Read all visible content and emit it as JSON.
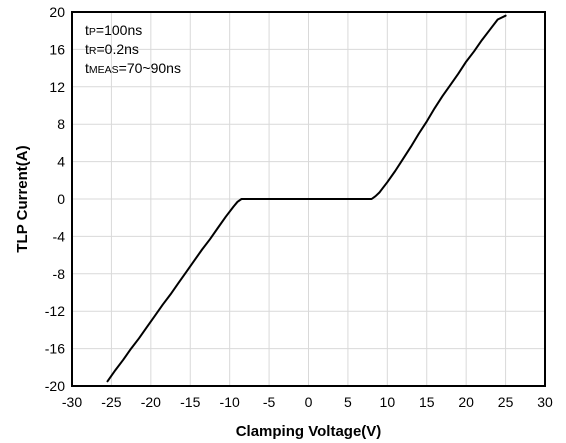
{
  "chart_data": {
    "type": "line",
    "title": "",
    "xlabel": "Clamping Voltage(V)",
    "ylabel": "TLP Current(A)",
    "xlim": [
      -30,
      30
    ],
    "ylim": [
      -20,
      20
    ],
    "xticks": [
      -30,
      -25,
      -20,
      -15,
      -10,
      -5,
      0,
      5,
      10,
      15,
      20,
      25,
      30
    ],
    "yticks": [
      -20,
      -16,
      -12,
      -8,
      -4,
      0,
      4,
      8,
      12,
      16,
      20
    ],
    "grid": true,
    "legend": "none",
    "annotations": [
      {
        "prefix": "t",
        "sub": "P",
        "suffix": "=100ns"
      },
      {
        "prefix": "t",
        "sub": "R",
        "suffix": "=0.2ns"
      },
      {
        "prefix": "t",
        "sub": "MEAS",
        "suffix": "=70~90ns"
      }
    ],
    "series": [
      {
        "color": "#000000",
        "x": [
          -25.5,
          -24.5,
          -23.5,
          -22.5,
          -21.5,
          -20.5,
          -19.5,
          -18.5,
          -17.5,
          -16.5,
          -15.5,
          -14.5,
          -13.5,
          -12.5,
          -11.5,
          -10.5,
          -9.5,
          -9.0,
          -8.5,
          -8.0,
          -6.0,
          -4.0,
          -2.0,
          0.0,
          2.0,
          4.0,
          6.0,
          7.5,
          8.0,
          8.5,
          9.0,
          10.0,
          11.0,
          12.0,
          13.0,
          14.0,
          15.0,
          16.0,
          17.0,
          18.0,
          19.0,
          20.0,
          21.0,
          22.0,
          23.0,
          24.0,
          25.0
        ],
        "y": [
          -19.5,
          -18.3,
          -17.2,
          -16.0,
          -14.9,
          -13.7,
          -12.5,
          -11.3,
          -10.2,
          -9.0,
          -7.8,
          -6.6,
          -5.4,
          -4.3,
          -3.1,
          -1.9,
          -0.8,
          -0.3,
          0.0,
          0.0,
          0.0,
          0.0,
          0.0,
          0.0,
          0.0,
          0.0,
          0.0,
          0.0,
          0.0,
          0.3,
          0.7,
          1.8,
          3.0,
          4.3,
          5.6,
          7.0,
          8.3,
          9.7,
          11.0,
          12.2,
          13.4,
          14.7,
          15.8,
          17.0,
          18.1,
          19.2,
          19.6
        ]
      }
    ]
  }
}
